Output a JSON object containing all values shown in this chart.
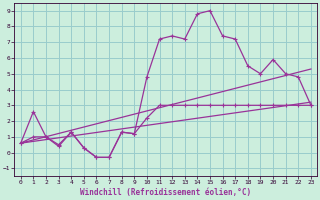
{
  "xlabel": "Windchill (Refroidissement éolien,°C)",
  "background_color": "#cceedd",
  "grid_color": "#99cccc",
  "line_color": "#993399",
  "xlim": [
    -0.5,
    23.5
  ],
  "ylim": [
    -1.5,
    9.5
  ],
  "xticks": [
    0,
    1,
    2,
    3,
    4,
    5,
    6,
    7,
    8,
    9,
    10,
    11,
    12,
    13,
    14,
    15,
    16,
    17,
    18,
    19,
    20,
    21,
    22,
    23
  ],
  "yticks": [
    -1,
    0,
    1,
    2,
    3,
    4,
    5,
    6,
    7,
    8,
    9
  ],
  "curve1_x": [
    0,
    1,
    2,
    3,
    4,
    5,
    6,
    7,
    8,
    9,
    10,
    11,
    12,
    13,
    14,
    15,
    16,
    17,
    18,
    19,
    20,
    21,
    22,
    23
  ],
  "curve1_y": [
    0.6,
    2.6,
    1.0,
    0.4,
    1.3,
    0.3,
    -0.3,
    -0.3,
    1.3,
    1.2,
    4.8,
    7.2,
    7.4,
    7.2,
    8.8,
    9.0,
    7.4,
    7.2,
    5.5,
    5.0,
    5.9,
    5.0,
    4.8,
    3.0
  ],
  "curve2_x": [
    0,
    1,
    2,
    3,
    4,
    5,
    6,
    7,
    8,
    9,
    10,
    11,
    12,
    13,
    14,
    15,
    16,
    17,
    18,
    19,
    20,
    21,
    22,
    23
  ],
  "curve2_y": [
    0.6,
    1.0,
    1.0,
    0.5,
    1.3,
    0.3,
    -0.3,
    -0.3,
    1.3,
    1.2,
    2.2,
    3.0,
    3.0,
    3.0,
    3.0,
    3.0,
    3.0,
    3.0,
    3.0,
    3.0,
    3.0,
    3.0,
    3.0,
    3.0
  ],
  "line1_x": [
    0,
    23
  ],
  "line1_y": [
    0.6,
    5.3
  ],
  "line2_x": [
    0,
    23
  ],
  "line2_y": [
    0.6,
    3.2
  ]
}
